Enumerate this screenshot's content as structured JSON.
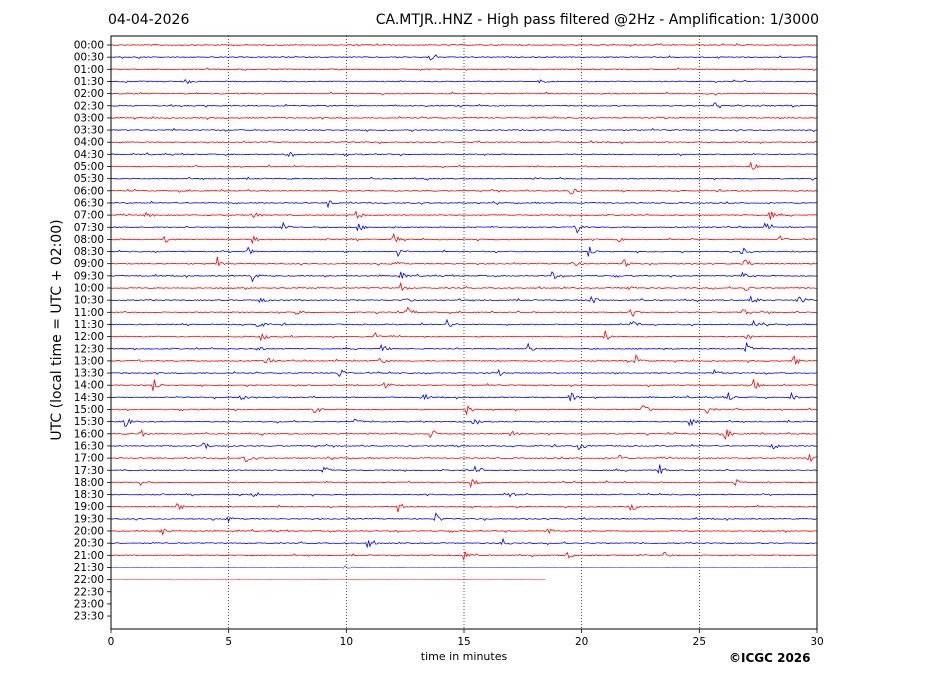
{
  "header": {
    "date": "04-04-2026",
    "title": "CA.MTJR..HNZ - High pass filtered @2Hz - Amplification: 1/3000"
  },
  "footer": {
    "copyright": "©ICGC 2026"
  },
  "chart_data": {
    "type": "line",
    "title": "CA.MTJR..HNZ - High pass filtered @2Hz - Amplification: 1/3000",
    "xlabel": "time in minutes",
    "ylabel": "UTC (local time = UTC + 02:00)",
    "xlim": [
      0,
      30
    ],
    "xticks": [
      "0",
      "5",
      "10",
      "15",
      "20",
      "25",
      "30"
    ],
    "vertical_gridlines_at": [
      5,
      10,
      15,
      20,
      25
    ],
    "grid": "vertical dotted",
    "rows": [
      "00:00",
      "00:30",
      "01:00",
      "01:30",
      "02:00",
      "02:30",
      "03:00",
      "03:30",
      "04:00",
      "04:30",
      "05:00",
      "05:30",
      "06:00",
      "06:30",
      "07:00",
      "07:30",
      "08:00",
      "08:30",
      "09:00",
      "09:30",
      "10:00",
      "10:30",
      "11:00",
      "11:30",
      "12:00",
      "12:30",
      "13:00",
      "13:30",
      "14:00",
      "14:30",
      "15:00",
      "15:30",
      "16:00",
      "16:30",
      "17:00",
      "17:30",
      "18:00",
      "18:30",
      "19:00",
      "19:30",
      "20:00",
      "20:30",
      "21:00",
      "21:30",
      "22:00",
      "22:30",
      "23:00",
      "23:30"
    ],
    "row_colors": [
      "#ff0000",
      "#0000ff"
    ],
    "last_trace_row": "22:00",
    "last_trace_end_minutes": 18.5,
    "faded_rows": [
      "21:30",
      "22:00"
    ],
    "series": [
      {
        "name": "00:00",
        "events": []
      },
      {
        "name": "00:30",
        "events": [
          {
            "t": 13.5,
            "amp": 0.4
          }
        ]
      },
      {
        "name": "01:00",
        "events": []
      },
      {
        "name": "01:30",
        "events": [
          {
            "t": 3.2,
            "amp": 0.3
          },
          {
            "t": 18.2,
            "amp": 0.3
          }
        ]
      },
      {
        "name": "02:00",
        "events": []
      },
      {
        "name": "02:30",
        "events": [
          {
            "t": 25.6,
            "amp": 0.4
          }
        ]
      },
      {
        "name": "03:00",
        "events": []
      },
      {
        "name": "03:30",
        "events": []
      },
      {
        "name": "04:00",
        "events": []
      },
      {
        "name": "04:30",
        "events": [
          {
            "t": 7.5,
            "amp": 0.3
          }
        ]
      },
      {
        "name": "05:00",
        "events": [
          {
            "t": 27.2,
            "amp": 0.4
          }
        ]
      },
      {
        "name": "05:30",
        "events": []
      },
      {
        "name": "06:00",
        "events": [
          {
            "t": 19.5,
            "amp": 0.4
          }
        ]
      },
      {
        "name": "06:30",
        "events": [
          {
            "t": 9.2,
            "amp": 0.4
          }
        ]
      },
      {
        "name": "07:00",
        "events": [
          {
            "t": 1.5,
            "amp": 0.5
          },
          {
            "t": 6.0,
            "amp": 0.4
          },
          {
            "t": 10.4,
            "amp": 0.5
          },
          {
            "t": 28.0,
            "amp": 0.4
          }
        ]
      },
      {
        "name": "07:30",
        "events": [
          {
            "t": 7.3,
            "amp": 0.5
          },
          {
            "t": 10.5,
            "amp": 0.4
          },
          {
            "t": 19.8,
            "amp": 0.5
          },
          {
            "t": 27.8,
            "amp": 0.4
          }
        ]
      },
      {
        "name": "08:00",
        "events": [
          {
            "t": 2.3,
            "amp": 0.4
          },
          {
            "t": 6.0,
            "amp": 0.4
          },
          {
            "t": 12.0,
            "amp": 0.5
          },
          {
            "t": 21.6,
            "amp": 0.4
          },
          {
            "t": 28.4,
            "amp": 0.4
          }
        ]
      },
      {
        "name": "08:30",
        "events": [
          {
            "t": 5.8,
            "amp": 0.5
          },
          {
            "t": 12.2,
            "amp": 0.4
          },
          {
            "t": 20.3,
            "amp": 0.5
          },
          {
            "t": 26.8,
            "amp": 0.4
          }
        ]
      },
      {
        "name": "09:00",
        "events": [
          {
            "t": 4.5,
            "amp": 0.5
          },
          {
            "t": 12.1,
            "amp": 0.4
          },
          {
            "t": 19.6,
            "amp": 0.5
          },
          {
            "t": 21.8,
            "amp": 0.4
          },
          {
            "t": 26.9,
            "amp": 0.4
          }
        ]
      },
      {
        "name": "09:30",
        "events": [
          {
            "t": 6.0,
            "amp": 0.5
          },
          {
            "t": 12.3,
            "amp": 0.4
          },
          {
            "t": 18.7,
            "amp": 0.5
          },
          {
            "t": 26.8,
            "amp": 0.4
          }
        ]
      },
      {
        "name": "10:00",
        "events": [
          {
            "t": 7.8,
            "amp": 0.4
          },
          {
            "t": 12.3,
            "amp": 0.5
          },
          {
            "t": 21.9,
            "amp": 0.4
          },
          {
            "t": 26.9,
            "amp": 0.4
          }
        ]
      },
      {
        "name": "10:30",
        "events": [
          {
            "t": 6.3,
            "amp": 0.4
          },
          {
            "t": 12.5,
            "amp": 0.5
          },
          {
            "t": 20.4,
            "amp": 0.5
          },
          {
            "t": 27.2,
            "amp": 0.5
          },
          {
            "t": 29.2,
            "amp": 0.4
          }
        ]
      },
      {
        "name": "11:00",
        "events": [
          {
            "t": 7.9,
            "amp": 0.4
          },
          {
            "t": 12.6,
            "amp": 0.5
          },
          {
            "t": 22.1,
            "amp": 0.5
          },
          {
            "t": 26.8,
            "amp": 0.4
          }
        ]
      },
      {
        "name": "11:30",
        "events": [
          {
            "t": 6.2,
            "amp": 0.5
          },
          {
            "t": 14.3,
            "amp": 0.5
          },
          {
            "t": 22.1,
            "amp": 0.5
          },
          {
            "t": 27.3,
            "amp": 0.4
          }
        ]
      },
      {
        "name": "12:00",
        "events": [
          {
            "t": 6.4,
            "amp": 0.5
          },
          {
            "t": 11.2,
            "amp": 0.5
          },
          {
            "t": 21.0,
            "amp": 0.5
          },
          {
            "t": 27.0,
            "amp": 0.4
          }
        ]
      },
      {
        "name": "12:30",
        "events": [
          {
            "t": 6.2,
            "amp": 0.4
          },
          {
            "t": 11.5,
            "amp": 0.4
          },
          {
            "t": 17.7,
            "amp": 0.5
          },
          {
            "t": 27.0,
            "amp": 0.5
          }
        ]
      },
      {
        "name": "13:00",
        "events": [
          {
            "t": 6.6,
            "amp": 0.5
          },
          {
            "t": 11.4,
            "amp": 0.4
          },
          {
            "t": 22.3,
            "amp": 0.5
          },
          {
            "t": 29.0,
            "amp": 0.5
          }
        ]
      },
      {
        "name": "13:30",
        "events": [
          {
            "t": 9.7,
            "amp": 0.5
          },
          {
            "t": 16.5,
            "amp": 0.3
          },
          {
            "t": 25.7,
            "amp": 0.5
          }
        ]
      },
      {
        "name": "14:00",
        "events": [
          {
            "t": 1.8,
            "amp": 0.6
          },
          {
            "t": 11.6,
            "amp": 0.5
          },
          {
            "t": 27.3,
            "amp": 0.5
          }
        ]
      },
      {
        "name": "14:30",
        "events": [
          {
            "t": 5.5,
            "amp": 0.4
          },
          {
            "t": 13.2,
            "amp": 0.4
          },
          {
            "t": 19.5,
            "amp": 0.5
          },
          {
            "t": 26.2,
            "amp": 0.5
          },
          {
            "t": 28.9,
            "amp": 0.5
          }
        ]
      },
      {
        "name": "15:00",
        "events": [
          {
            "t": 8.6,
            "amp": 0.4
          },
          {
            "t": 15.1,
            "amp": 0.5
          },
          {
            "t": 22.6,
            "amp": 0.5
          },
          {
            "t": 25.3,
            "amp": 0.4
          }
        ]
      },
      {
        "name": "15:30",
        "events": [
          {
            "t": 0.6,
            "amp": 0.5
          },
          {
            "t": 10.3,
            "amp": 0.4
          },
          {
            "t": 15.4,
            "amp": 0.5
          },
          {
            "t": 24.6,
            "amp": 0.5
          }
        ]
      },
      {
        "name": "16:00",
        "events": [
          {
            "t": 1.2,
            "amp": 0.5
          },
          {
            "t": 13.6,
            "amp": 0.5
          },
          {
            "t": 17.0,
            "amp": 0.3
          },
          {
            "t": 26.1,
            "amp": 0.5
          }
        ]
      },
      {
        "name": "16:30",
        "events": [
          {
            "t": 3.9,
            "amp": 0.5
          },
          {
            "t": 19.9,
            "amp": 0.5
          },
          {
            "t": 28.0,
            "amp": 0.5
          }
        ]
      },
      {
        "name": "17:00",
        "events": [
          {
            "t": 5.7,
            "amp": 0.4
          },
          {
            "t": 21.6,
            "amp": 0.4
          },
          {
            "t": 29.6,
            "amp": 0.6
          }
        ]
      },
      {
        "name": "17:30",
        "events": [
          {
            "t": 9.0,
            "amp": 0.5
          },
          {
            "t": 15.5,
            "amp": 0.5
          },
          {
            "t": 23.3,
            "amp": 0.5
          }
        ]
      },
      {
        "name": "18:00",
        "events": [
          {
            "t": 1.2,
            "amp": 0.4
          },
          {
            "t": 15.3,
            "amp": 0.5
          },
          {
            "t": 26.5,
            "amp": 0.5
          }
        ]
      },
      {
        "name": "18:30",
        "events": [
          {
            "t": 5.9,
            "amp": 0.5
          },
          {
            "t": 16.9,
            "amp": 0.5
          }
        ]
      },
      {
        "name": "19:00",
        "events": [
          {
            "t": 2.8,
            "amp": 0.4
          },
          {
            "t": 12.2,
            "amp": 0.5
          },
          {
            "t": 22.1,
            "amp": 0.5
          }
        ]
      },
      {
        "name": "19:30",
        "events": [
          {
            "t": 5.0,
            "amp": 0.4
          },
          {
            "t": 13.8,
            "amp": 0.5
          }
        ]
      },
      {
        "name": "20:00",
        "events": [
          {
            "t": 2.2,
            "amp": 0.4
          },
          {
            "t": 18.5,
            "amp": 0.4
          }
        ]
      },
      {
        "name": "20:30",
        "events": [
          {
            "t": 10.9,
            "amp": 0.5
          },
          {
            "t": 16.6,
            "amp": 0.6
          }
        ]
      },
      {
        "name": "21:00",
        "events": [
          {
            "t": 15.0,
            "amp": 0.5
          },
          {
            "t": 19.4,
            "amp": 0.3
          },
          {
            "t": 23.5,
            "amp": 0.3
          }
        ]
      },
      {
        "name": "21:30",
        "events": [
          {
            "t": 9.9,
            "amp": 0.2
          }
        ]
      },
      {
        "name": "22:00",
        "events": []
      },
      {
        "name": "22:30",
        "events": []
      },
      {
        "name": "23:00",
        "events": []
      },
      {
        "name": "23:30",
        "events": []
      }
    ]
  }
}
